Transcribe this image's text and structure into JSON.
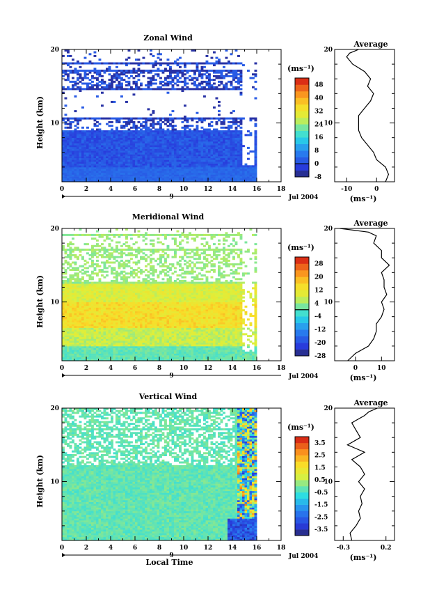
{
  "chart_data": [
    {
      "type": "heatmap",
      "title": "Zonal Wind",
      "ylabel": "Height (km)",
      "xlabel": "",
      "date_label": "Jul 2004",
      "day_marker": "9",
      "xlim": [
        0,
        18
      ],
      "ylim": [
        2,
        20
      ],
      "x_ticks": [
        "0",
        "2",
        "4",
        "6",
        "8",
        "10",
        "12",
        "14",
        "16",
        "18"
      ],
      "y_ticks": [
        "10",
        "20"
      ],
      "colorbar": {
        "unit_label": "(ms⁻¹)",
        "min": -8,
        "max": 52,
        "step": 4,
        "labels": [
          "48",
          "40",
          "32",
          "24",
          "16",
          "8",
          "0",
          "-8"
        ],
        "zero_line": 0
      },
      "data_extent_x": [
        0,
        16
      ],
      "average_profile": {
        "title": "Average",
        "xlabel": "(ms⁻¹)",
        "x_ticks": [
          "-10",
          "0"
        ],
        "xlim": [
          -14,
          6
        ],
        "y_ticks": [
          "10",
          "20"
        ],
        "height": [
          2,
          3,
          4,
          5,
          6,
          7,
          8,
          9,
          10,
          11,
          12,
          13,
          14,
          15,
          16,
          17,
          18,
          19,
          19.5,
          20
        ],
        "value": [
          3,
          4,
          3,
          0,
          -1,
          -3,
          -5,
          -6,
          -6,
          -6,
          -4,
          -2,
          -1,
          -3,
          -2,
          -4,
          -8,
          -10,
          -9,
          -6
        ]
      }
    },
    {
      "type": "heatmap",
      "title": "Meridional Wind",
      "ylabel": "Height (km)",
      "xlabel": "",
      "date_label": "Jul 2004",
      "day_marker": "9",
      "xlim": [
        0,
        18
      ],
      "ylim": [
        2,
        20
      ],
      "x_ticks": [
        "0",
        "2",
        "4",
        "6",
        "8",
        "10",
        "12",
        "14",
        "16",
        "18"
      ],
      "y_ticks": [
        "10",
        "20"
      ],
      "colorbar": {
        "unit_label": "(ms⁻¹)",
        "min": -28,
        "max": 32,
        "step": 4,
        "labels": [
          "28",
          "20",
          "12",
          "4",
          "-4",
          "-12",
          "-20",
          "-28"
        ],
        "zero_line": 0
      },
      "data_extent_x": [
        0,
        16
      ],
      "average_profile": {
        "title": "Average",
        "xlabel": "(ms⁻¹)",
        "x_ticks": [
          "0",
          "10"
        ],
        "xlim": [
          -8,
          15
        ],
        "y_ticks": [
          "10",
          "20"
        ],
        "height": [
          2,
          3,
          4,
          5,
          6,
          7,
          8,
          9,
          10,
          11,
          12,
          13,
          14,
          15,
          16,
          17,
          18,
          19,
          19.5,
          20
        ],
        "value": [
          -3,
          0,
          5,
          7,
          8,
          8,
          10,
          11,
          10,
          12,
          11,
          11,
          10,
          13,
          10,
          10,
          7,
          8,
          5,
          -6
        ]
      }
    },
    {
      "type": "heatmap",
      "title": "Vertical Wind",
      "ylabel": "Height (km)",
      "xlabel": "Local Time",
      "date_label": "Jul 2004",
      "day_marker": "9",
      "xlim": [
        0,
        18
      ],
      "ylim": [
        2,
        20
      ],
      "x_ticks": [
        "0",
        "2",
        "4",
        "6",
        "8",
        "10",
        "12",
        "14",
        "16",
        "18"
      ],
      "y_ticks": [
        "10",
        "20"
      ],
      "colorbar": {
        "unit_label": "(ms⁻¹)",
        "min": -4,
        "max": 4,
        "step": 0.5,
        "labels": [
          "3.5",
          "2.5",
          "1.5",
          "0.5",
          "-0.5",
          "-1.5",
          "-2.5",
          "-3.5"
        ],
        "zero_line": null
      },
      "data_extent_x": [
        0,
        16
      ],
      "average_profile": {
        "title": "Average",
        "xlabel": "(ms⁻¹)",
        "x_ticks": [
          "-0.3",
          "0.2"
        ],
        "xlim": [
          -0.4,
          0.3
        ],
        "y_ticks": [
          "10",
          "20"
        ],
        "height": [
          2,
          3,
          4,
          5,
          6,
          7,
          8,
          9,
          10,
          11,
          12,
          13,
          14,
          15,
          16,
          17,
          18,
          19,
          19.5,
          20
        ],
        "value": [
          -0.2,
          -0.22,
          -0.15,
          -0.1,
          -0.12,
          -0.08,
          -0.1,
          -0.05,
          -0.12,
          -0.05,
          -0.1,
          -0.2,
          -0.05,
          -0.25,
          -0.1,
          -0.15,
          -0.2,
          -0.05,
          0.0,
          0.1
        ]
      }
    }
  ]
}
